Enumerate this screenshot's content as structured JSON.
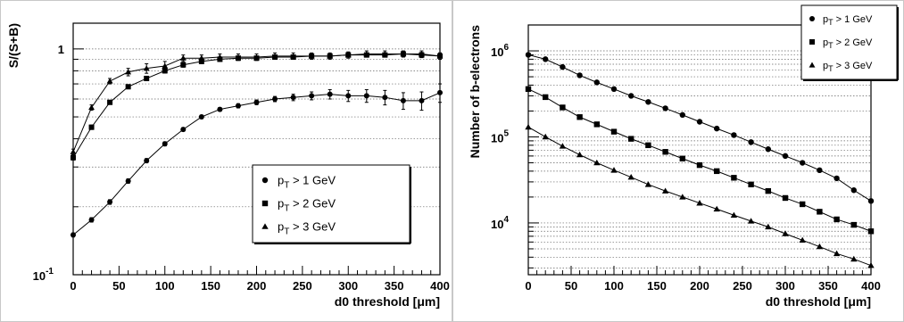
{
  "chart_data": [
    {
      "type": "scatter",
      "title": "",
      "xlabel_prefix": "d0 threshold [",
      "xlabel_unit": "μm",
      "xlabel_suffix": "]",
      "ylabel": "S/(S+B)",
      "xlim": [
        0,
        400
      ],
      "ylim": [
        0.1,
        1.3
      ],
      "yscale": "log",
      "grid": "horizontal-dotted",
      "legend_position": "lower-right",
      "x_ticks": [
        "0",
        "50",
        "100",
        "150",
        "200",
        "250",
        "300",
        "350",
        "400"
      ],
      "y_ticks": [
        {
          "value": 0.1,
          "base": "10",
          "exp": "-1"
        },
        {
          "value": 1,
          "base": "1",
          "exp": ""
        }
      ],
      "series": [
        {
          "name": {
            "pre": "p",
            "sub": "T",
            "post": " > 1 GeV"
          },
          "marker": "circle",
          "x": [
            0,
            20,
            40,
            60,
            80,
            100,
            120,
            140,
            160,
            180,
            200,
            220,
            240,
            260,
            280,
            300,
            320,
            340,
            360,
            380,
            400
          ],
          "y": [
            0.15,
            0.175,
            0.21,
            0.26,
            0.32,
            0.38,
            0.44,
            0.5,
            0.54,
            0.56,
            0.58,
            0.6,
            0.61,
            0.62,
            0.63,
            0.62,
            0.62,
            0.61,
            0.59,
            0.59,
            0.64
          ],
          "yerr": [
            0.003,
            0.004,
            0.005,
            0.006,
            0.007,
            0.008,
            0.008,
            0.009,
            0.01,
            0.012,
            0.014,
            0.016,
            0.02,
            0.025,
            0.03,
            0.035,
            0.04,
            0.045,
            0.05,
            0.055,
            0.06
          ]
        },
        {
          "name": {
            "pre": "p",
            "sub": "T",
            "post": " > 2 GeV"
          },
          "marker": "square",
          "x": [
            0,
            20,
            40,
            60,
            80,
            100,
            120,
            140,
            160,
            180,
            200,
            220,
            240,
            260,
            280,
            300,
            320,
            340,
            360,
            380,
            400
          ],
          "y": [
            0.33,
            0.45,
            0.58,
            0.68,
            0.74,
            0.8,
            0.85,
            0.88,
            0.9,
            0.91,
            0.91,
            0.92,
            0.92,
            0.93,
            0.93,
            0.94,
            0.94,
            0.94,
            0.95,
            0.94,
            0.93
          ],
          "yerr": [
            0.008,
            0.01,
            0.012,
            0.014,
            0.016,
            0.018,
            0.02,
            0.02,
            0.02,
            0.02,
            0.02,
            0.02,
            0.02,
            0.02,
            0.02,
            0.02,
            0.02,
            0.02,
            0.025,
            0.025,
            0.03
          ]
        },
        {
          "name": {
            "pre": "p",
            "sub": "T",
            "post": " > 3 GeV"
          },
          "marker": "triangle",
          "x": [
            0,
            20,
            40,
            60,
            80,
            100,
            120,
            140,
            160,
            180,
            200,
            220,
            240,
            260,
            280,
            300,
            320,
            340,
            360,
            380,
            400
          ],
          "y": [
            0.35,
            0.55,
            0.72,
            0.79,
            0.82,
            0.84,
            0.91,
            0.91,
            0.92,
            0.92,
            0.92,
            0.93,
            0.93,
            0.93,
            0.93,
            0.94,
            0.95,
            0.95,
            0.95,
            0.95,
            0.93
          ],
          "yerr": [
            0.01,
            0.015,
            0.02,
            0.03,
            0.04,
            0.04,
            0.03,
            0.03,
            0.03,
            0.03,
            0.03,
            0.03,
            0.03,
            0.03,
            0.03,
            0.03,
            0.03,
            0.03,
            0.03,
            0.03,
            0.03
          ]
        }
      ]
    },
    {
      "type": "line",
      "title": "",
      "xlabel_prefix": "d0 threshold [",
      "xlabel_unit": "μm",
      "xlabel_suffix": "]",
      "ylabel": "Number of b-electrons",
      "xlim": [
        0,
        400
      ],
      "ylim": [
        2500,
        2000000
      ],
      "yscale": "log",
      "grid": "horizontal-dotted",
      "legend_position": "top-right",
      "x_ticks": [
        "0",
        "50",
        "100",
        "150",
        "200",
        "250",
        "300",
        "350",
        "400"
      ],
      "y_ticks": [
        {
          "value": 10000,
          "base": "10",
          "exp": "4"
        },
        {
          "value": 100000,
          "base": "10",
          "exp": "5"
        },
        {
          "value": 1000000,
          "base": "10",
          "exp": "6"
        }
      ],
      "series": [
        {
          "name": {
            "pre": "p",
            "sub": "T",
            "post": " > 1 GeV"
          },
          "marker": "circle",
          "x": [
            0,
            20,
            40,
            60,
            80,
            100,
            120,
            140,
            160,
            180,
            200,
            220,
            240,
            260,
            280,
            300,
            320,
            340,
            360,
            380,
            400
          ],
          "y": [
            900000,
            800000,
            650000,
            520000,
            430000,
            360000,
            300000,
            255000,
            215000,
            180000,
            150000,
            125000,
            105000,
            87000,
            72000,
            60000,
            50000,
            41000,
            33000,
            24000,
            18000
          ]
        },
        {
          "name": {
            "pre": "p",
            "sub": "T",
            "post": " > 2 GeV"
          },
          "marker": "square",
          "x": [
            0,
            20,
            40,
            60,
            80,
            100,
            120,
            140,
            160,
            180,
            200,
            220,
            240,
            260,
            280,
            300,
            320,
            340,
            360,
            380,
            400
          ],
          "y": [
            360000,
            290000,
            220000,
            170000,
            140000,
            115000,
            95000,
            80000,
            67000,
            56000,
            47000,
            40000,
            33500,
            28000,
            23500,
            19500,
            16500,
            13500,
            11000,
            9500,
            8000
          ]
        },
        {
          "name": {
            "pre": "p",
            "sub": "T",
            "post": " > 3 GeV"
          },
          "marker": "triangle",
          "x": [
            0,
            20,
            40,
            60,
            80,
            100,
            120,
            140,
            160,
            180,
            200,
            220,
            240,
            260,
            280,
            300,
            320,
            340,
            360,
            380,
            400
          ],
          "y": [
            130000,
            100000,
            78000,
            62000,
            50000,
            41000,
            34000,
            28000,
            23500,
            20000,
            17000,
            14500,
            12300,
            10500,
            9000,
            7500,
            6300,
            5300,
            4400,
            3800,
            3200
          ]
        }
      ]
    }
  ]
}
